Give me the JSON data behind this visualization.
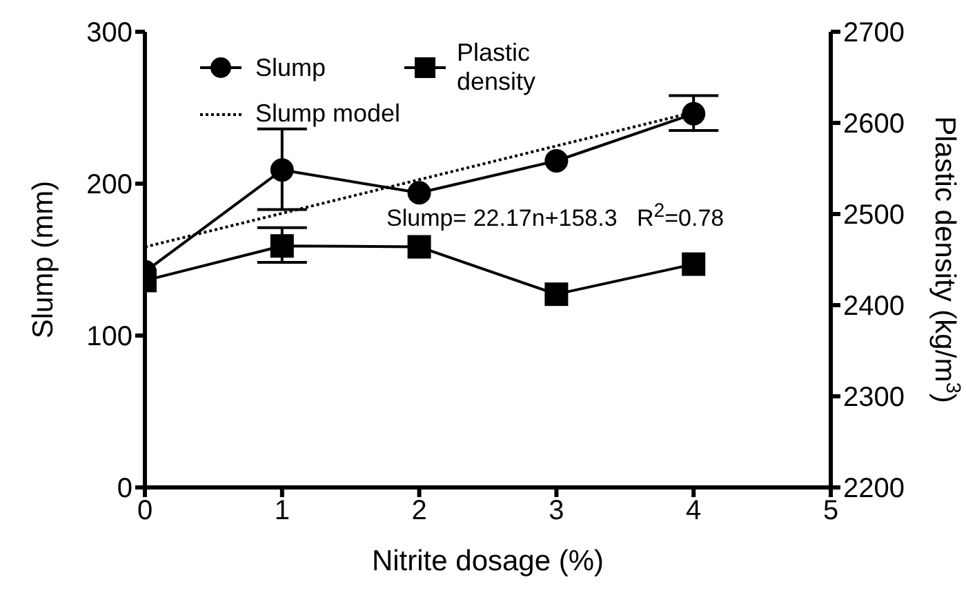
{
  "chart_data": {
    "type": "line",
    "xlabel": "Nitrite dosage (%)",
    "ylabel": "Slump (mm)",
    "y2label": "Plastic density (kg/m$^{3}$)",
    "x": [
      0,
      1,
      2,
      3,
      4
    ],
    "series": [
      {
        "name": "Slump",
        "color": "#000000",
        "marker": "circle",
        "values": [
          142,
          209,
          194,
          215,
          246
        ],
        "errors": [
          null,
          [
            183,
            236
          ],
          null,
          null,
          [
            235,
            258
          ]
        ]
      },
      {
        "name": "Plastic density",
        "color": "#000000",
        "marker": "square",
        "axis": "y2",
        "values": [
          2427,
          2465,
          2464,
          2412,
          2445
        ],
        "errors": [
          null,
          [
            2447,
            2485
          ],
          null,
          null,
          null
        ]
      },
      {
        "name": "Slump model",
        "type": "line",
        "color": "#000000",
        "marker": "none",
        "line_style": "dotted",
        "x": [
          0,
          4
        ],
        "values": [
          158.3,
          247
        ]
      }
    ],
    "xlim": [
      0,
      5
    ],
    "xticks": [
      0,
      1,
      2,
      3,
      4,
      5
    ],
    "ylim": [
      0,
      300
    ],
    "yticks": [
      0,
      100,
      200,
      300
    ],
    "y2lim": [
      2200,
      2700
    ],
    "y2ticks": [
      2200,
      2300,
      2400,
      2500,
      2600,
      2700
    ],
    "annotations": [
      "Slump= 22.17n+158.3   R$^{2}$=0.78"
    ],
    "legend": "top left",
    "grid": false
  }
}
